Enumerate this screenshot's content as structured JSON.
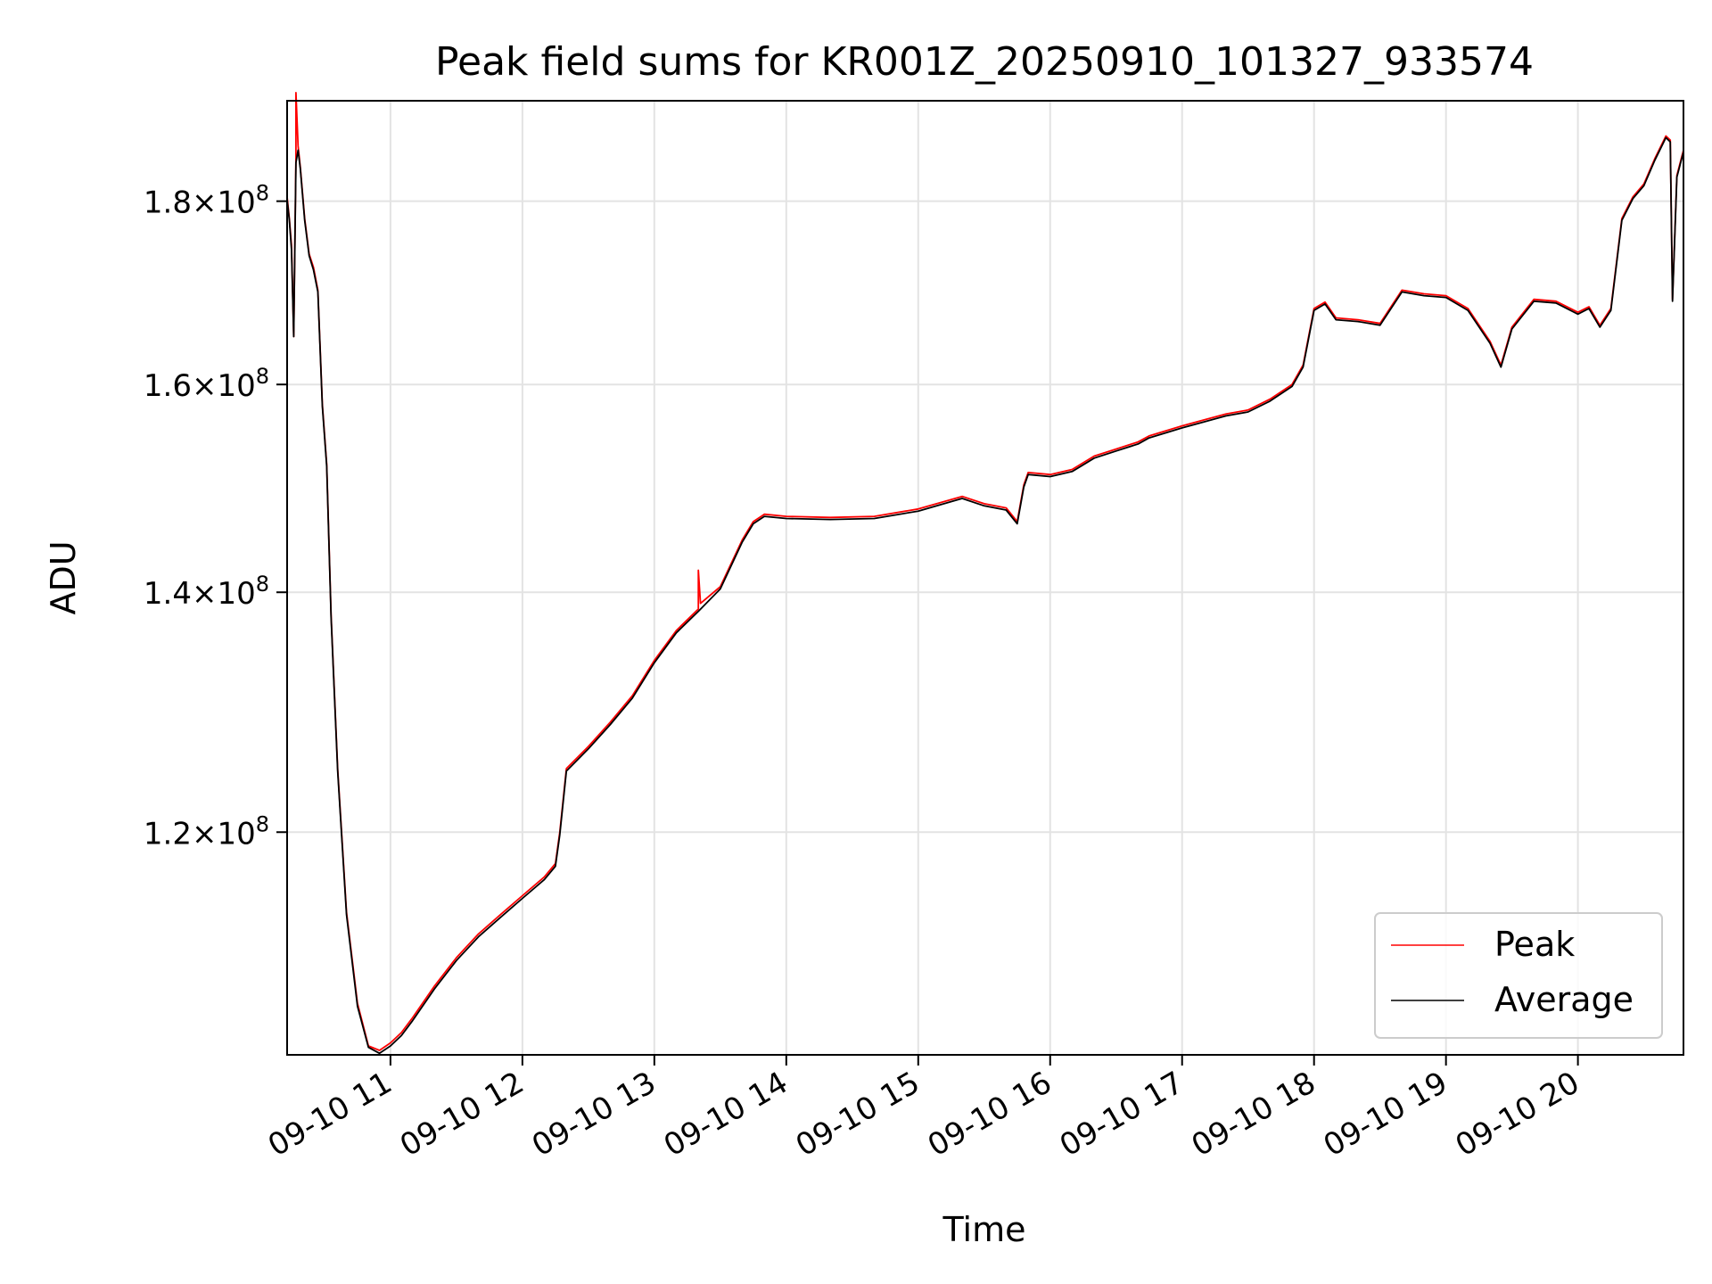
{
  "chart_data": {
    "type": "line",
    "title": "Peak field sums for KR001Z_20250910_101327_933574",
    "xlabel": "Time",
    "ylabel": "ADU",
    "y_scale": "log",
    "xlim": [
      "2025-09-10 10:13",
      "2025-09-10 20:48"
    ],
    "ylim": [
      104000000,
      192000000
    ],
    "grid": true,
    "legend_position": "lower-right",
    "x_ticks": [
      {
        "value": "2025-09-10 11:00",
        "label": "09-10 11"
      },
      {
        "value": "2025-09-10 12:00",
        "label": "09-10 12"
      },
      {
        "value": "2025-09-10 13:00",
        "label": "09-10 13"
      },
      {
        "value": "2025-09-10 14:00",
        "label": "09-10 14"
      },
      {
        "value": "2025-09-10 15:00",
        "label": "09-10 15"
      },
      {
        "value": "2025-09-10 16:00",
        "label": "09-10 16"
      },
      {
        "value": "2025-09-10 17:00",
        "label": "09-10 17"
      },
      {
        "value": "2025-09-10 18:00",
        "label": "09-10 18"
      },
      {
        "value": "2025-09-10 19:00",
        "label": "09-10 19"
      },
      {
        "value": "2025-09-10 20:00",
        "label": "09-10 20"
      }
    ],
    "y_ticks": [
      {
        "value": 120000000,
        "mant": "1.2",
        "exp": "8"
      },
      {
        "value": 140000000,
        "mant": "1.4",
        "exp": "8"
      },
      {
        "value": 160000000,
        "mant": "1.6",
        "exp": "8"
      },
      {
        "value": 180000000,
        "mant": "1.8",
        "exp": "8"
      }
    ],
    "series": [
      {
        "name": "Peak",
        "color": "#ff0000",
        "points": [
          [
            "2025-09-10 10:13",
            180500000
          ],
          [
            "2025-09-10 10:14",
            178000000
          ],
          [
            "2025-09-10 10:15",
            175000000
          ],
          [
            "2025-09-10 10:16",
            165000000
          ],
          [
            "2025-09-10 10:17",
            185000000
          ],
          [
            "2025-09-10 10:17",
            193000000
          ],
          [
            "2025-09-10 10:18",
            186500000
          ],
          [
            "2025-09-10 10:19",
            184000000
          ],
          [
            "2025-09-10 10:21",
            178000000
          ],
          [
            "2025-09-10 10:23",
            174000000
          ],
          [
            "2025-09-10 10:25",
            172500000
          ],
          [
            "2025-09-10 10:27",
            170000000
          ],
          [
            "2025-09-10 10:29",
            158000000
          ],
          [
            "2025-09-10 10:31",
            152000000
          ],
          [
            "2025-09-10 10:33",
            138000000
          ],
          [
            "2025-09-10 10:36",
            125000000
          ],
          [
            "2025-09-10 10:40",
            114000000
          ],
          [
            "2025-09-10 10:45",
            107500000
          ],
          [
            "2025-09-10 10:50",
            104600000
          ],
          [
            "2025-09-10 10:55",
            104300000
          ],
          [
            "2025-09-10 11:00",
            104800000
          ],
          [
            "2025-09-10 11:05",
            105500000
          ],
          [
            "2025-09-10 11:10",
            106500000
          ],
          [
            "2025-09-10 11:20",
            108700000
          ],
          [
            "2025-09-10 11:30",
            110700000
          ],
          [
            "2025-09-10 11:40",
            112400000
          ],
          [
            "2025-09-10 11:50",
            113800000
          ],
          [
            "2025-09-10 12:00",
            115200000
          ],
          [
            "2025-09-10 12:10",
            116600000
          ],
          [
            "2025-09-10 12:15",
            117600000
          ],
          [
            "2025-09-10 12:17",
            120000000
          ],
          [
            "2025-09-10 12:20",
            125000000
          ],
          [
            "2025-09-10 12:30",
            126800000
          ],
          [
            "2025-09-10 12:40",
            128800000
          ],
          [
            "2025-09-10 12:50",
            131000000
          ],
          [
            "2025-09-10 13:00",
            134000000
          ],
          [
            "2025-09-10 13:10",
            136600000
          ],
          [
            "2025-09-10 13:20",
            138500000
          ],
          [
            "2025-09-10 13:20",
            142000000
          ],
          [
            "2025-09-10 13:21",
            139000000
          ],
          [
            "2025-09-10 13:30",
            140500000
          ],
          [
            "2025-09-10 13:40",
            144800000
          ],
          [
            "2025-09-10 13:45",
            146500000
          ],
          [
            "2025-09-10 13:50",
            147200000
          ],
          [
            "2025-09-10 14:00",
            147000000
          ],
          [
            "2025-09-10 14:20",
            146900000
          ],
          [
            "2025-09-10 14:40",
            147000000
          ],
          [
            "2025-09-10 15:00",
            147700000
          ],
          [
            "2025-09-10 15:10",
            148300000
          ],
          [
            "2025-09-10 15:20",
            148900000
          ],
          [
            "2025-09-10 15:30",
            148200000
          ],
          [
            "2025-09-10 15:40",
            147800000
          ],
          [
            "2025-09-10 15:45",
            146500000
          ],
          [
            "2025-09-10 15:48",
            150000000
          ],
          [
            "2025-09-10 15:50",
            151200000
          ],
          [
            "2025-09-10 16:00",
            151000000
          ],
          [
            "2025-09-10 16:10",
            151500000
          ],
          [
            "2025-09-10 16:20",
            152800000
          ],
          [
            "2025-09-10 16:30",
            153500000
          ],
          [
            "2025-09-10 16:40",
            154200000
          ],
          [
            "2025-09-10 16:45",
            154800000
          ],
          [
            "2025-09-10 17:00",
            155800000
          ],
          [
            "2025-09-10 17:10",
            156400000
          ],
          [
            "2025-09-10 17:20",
            157000000
          ],
          [
            "2025-09-10 17:30",
            157400000
          ],
          [
            "2025-09-10 17:40",
            158500000
          ],
          [
            "2025-09-10 17:50",
            160000000
          ],
          [
            "2025-09-10 17:55",
            162000000
          ],
          [
            "2025-09-10 18:00",
            168000000
          ],
          [
            "2025-09-10 18:05",
            168700000
          ],
          [
            "2025-09-10 18:10",
            167000000
          ],
          [
            "2025-09-10 18:20",
            166800000
          ],
          [
            "2025-09-10 18:30",
            166400000
          ],
          [
            "2025-09-10 18:40",
            170000000
          ],
          [
            "2025-09-10 18:50",
            169600000
          ],
          [
            "2025-09-10 19:00",
            169400000
          ],
          [
            "2025-09-10 19:10",
            168000000
          ],
          [
            "2025-09-10 19:20",
            164500000
          ],
          [
            "2025-09-10 19:25",
            162000000
          ],
          [
            "2025-09-10 19:30",
            166000000
          ],
          [
            "2025-09-10 19:40",
            169000000
          ],
          [
            "2025-09-10 19:50",
            168800000
          ],
          [
            "2025-09-10 20:00",
            167600000
          ],
          [
            "2025-09-10 20:05",
            168200000
          ],
          [
            "2025-09-10 20:10",
            166200000
          ],
          [
            "2025-09-10 20:15",
            168000000
          ],
          [
            "2025-09-10 20:20",
            178000000
          ],
          [
            "2025-09-10 20:25",
            180500000
          ],
          [
            "2025-09-10 20:30",
            182000000
          ],
          [
            "2025-09-10 20:35",
            185000000
          ],
          [
            "2025-09-10 20:40",
            187700000
          ],
          [
            "2025-09-10 20:42",
            187200000
          ],
          [
            "2025-09-10 20:43",
            169000000
          ],
          [
            "2025-09-10 20:45",
            183000000
          ],
          [
            "2025-09-10 20:48",
            186000000
          ]
        ]
      },
      {
        "name": "Average",
        "color": "#000000",
        "points": [
          [
            "2025-09-10 10:13",
            180200000
          ],
          [
            "2025-09-10 10:14",
            177800000
          ],
          [
            "2025-09-10 10:15",
            174500000
          ],
          [
            "2025-09-10 10:16",
            165000000
          ],
          [
            "2025-09-10 10:17",
            184500000
          ],
          [
            "2025-09-10 10:18",
            186000000
          ],
          [
            "2025-09-10 10:19",
            183800000
          ],
          [
            "2025-09-10 10:21",
            177800000
          ],
          [
            "2025-09-10 10:23",
            173800000
          ],
          [
            "2025-09-10 10:25",
            172200000
          ],
          [
            "2025-09-10 10:27",
            169800000
          ],
          [
            "2025-09-10 10:29",
            157800000
          ],
          [
            "2025-09-10 10:31",
            151800000
          ],
          [
            "2025-09-10 10:33",
            137800000
          ],
          [
            "2025-09-10 10:36",
            124800000
          ],
          [
            "2025-09-10 10:40",
            113800000
          ],
          [
            "2025-09-10 10:45",
            107300000
          ],
          [
            "2025-09-10 10:50",
            104500000
          ],
          [
            "2025-09-10 10:55",
            104100000
          ],
          [
            "2025-09-10 11:00",
            104600000
          ],
          [
            "2025-09-10 11:05",
            105300000
          ],
          [
            "2025-09-10 11:10",
            106300000
          ],
          [
            "2025-09-10 11:20",
            108500000
          ],
          [
            "2025-09-10 11:30",
            110500000
          ],
          [
            "2025-09-10 11:40",
            112200000
          ],
          [
            "2025-09-10 11:50",
            113600000
          ],
          [
            "2025-09-10 12:00",
            115000000
          ],
          [
            "2025-09-10 12:10",
            116400000
          ],
          [
            "2025-09-10 12:15",
            117400000
          ],
          [
            "2025-09-10 12:17",
            119800000
          ],
          [
            "2025-09-10 12:20",
            124800000
          ],
          [
            "2025-09-10 12:30",
            126600000
          ],
          [
            "2025-09-10 12:40",
            128600000
          ],
          [
            "2025-09-10 12:50",
            130800000
          ],
          [
            "2025-09-10 13:00",
            133800000
          ],
          [
            "2025-09-10 13:10",
            136400000
          ],
          [
            "2025-09-10 13:20",
            138300000
          ],
          [
            "2025-09-10 13:30",
            140300000
          ],
          [
            "2025-09-10 13:40",
            144600000
          ],
          [
            "2025-09-10 13:45",
            146300000
          ],
          [
            "2025-09-10 13:50",
            147000000
          ],
          [
            "2025-09-10 14:00",
            146800000
          ],
          [
            "2025-09-10 14:20",
            146700000
          ],
          [
            "2025-09-10 14:40",
            146800000
          ],
          [
            "2025-09-10 15:00",
            147500000
          ],
          [
            "2025-09-10 15:10",
            148100000
          ],
          [
            "2025-09-10 15:20",
            148700000
          ],
          [
            "2025-09-10 15:30",
            148000000
          ],
          [
            "2025-09-10 15:40",
            147600000
          ],
          [
            "2025-09-10 15:45",
            146300000
          ],
          [
            "2025-09-10 15:48",
            149800000
          ],
          [
            "2025-09-10 15:50",
            151000000
          ],
          [
            "2025-09-10 16:00",
            150800000
          ],
          [
            "2025-09-10 16:10",
            151300000
          ],
          [
            "2025-09-10 16:20",
            152600000
          ],
          [
            "2025-09-10 16:30",
            153300000
          ],
          [
            "2025-09-10 16:40",
            154000000
          ],
          [
            "2025-09-10 16:45",
            154600000
          ],
          [
            "2025-09-10 17:00",
            155600000
          ],
          [
            "2025-09-10 17:10",
            156200000
          ],
          [
            "2025-09-10 17:20",
            156800000
          ],
          [
            "2025-09-10 17:30",
            157200000
          ],
          [
            "2025-09-10 17:40",
            158300000
          ],
          [
            "2025-09-10 17:50",
            159800000
          ],
          [
            "2025-09-10 17:55",
            161800000
          ],
          [
            "2025-09-10 18:00",
            167800000
          ],
          [
            "2025-09-10 18:05",
            168500000
          ],
          [
            "2025-09-10 18:10",
            166800000
          ],
          [
            "2025-09-10 18:20",
            166600000
          ],
          [
            "2025-09-10 18:30",
            166200000
          ],
          [
            "2025-09-10 18:40",
            169800000
          ],
          [
            "2025-09-10 18:50",
            169400000
          ],
          [
            "2025-09-10 19:00",
            169200000
          ],
          [
            "2025-09-10 19:10",
            167800000
          ],
          [
            "2025-09-10 19:20",
            164300000
          ],
          [
            "2025-09-10 19:25",
            161800000
          ],
          [
            "2025-09-10 19:30",
            165800000
          ],
          [
            "2025-09-10 19:40",
            168800000
          ],
          [
            "2025-09-10 19:50",
            168600000
          ],
          [
            "2025-09-10 20:00",
            167400000
          ],
          [
            "2025-09-10 20:05",
            168000000
          ],
          [
            "2025-09-10 20:10",
            166000000
          ],
          [
            "2025-09-10 20:15",
            167800000
          ],
          [
            "2025-09-10 20:20",
            177800000
          ],
          [
            "2025-09-10 20:25",
            180300000
          ],
          [
            "2025-09-10 20:30",
            181800000
          ],
          [
            "2025-09-10 20:35",
            184800000
          ],
          [
            "2025-09-10 20:40",
            187500000
          ],
          [
            "2025-09-10 20:42",
            187000000
          ],
          [
            "2025-09-10 20:43",
            168800000
          ],
          [
            "2025-09-10 20:45",
            182800000
          ],
          [
            "2025-09-10 20:48",
            185800000
          ]
        ]
      }
    ]
  }
}
